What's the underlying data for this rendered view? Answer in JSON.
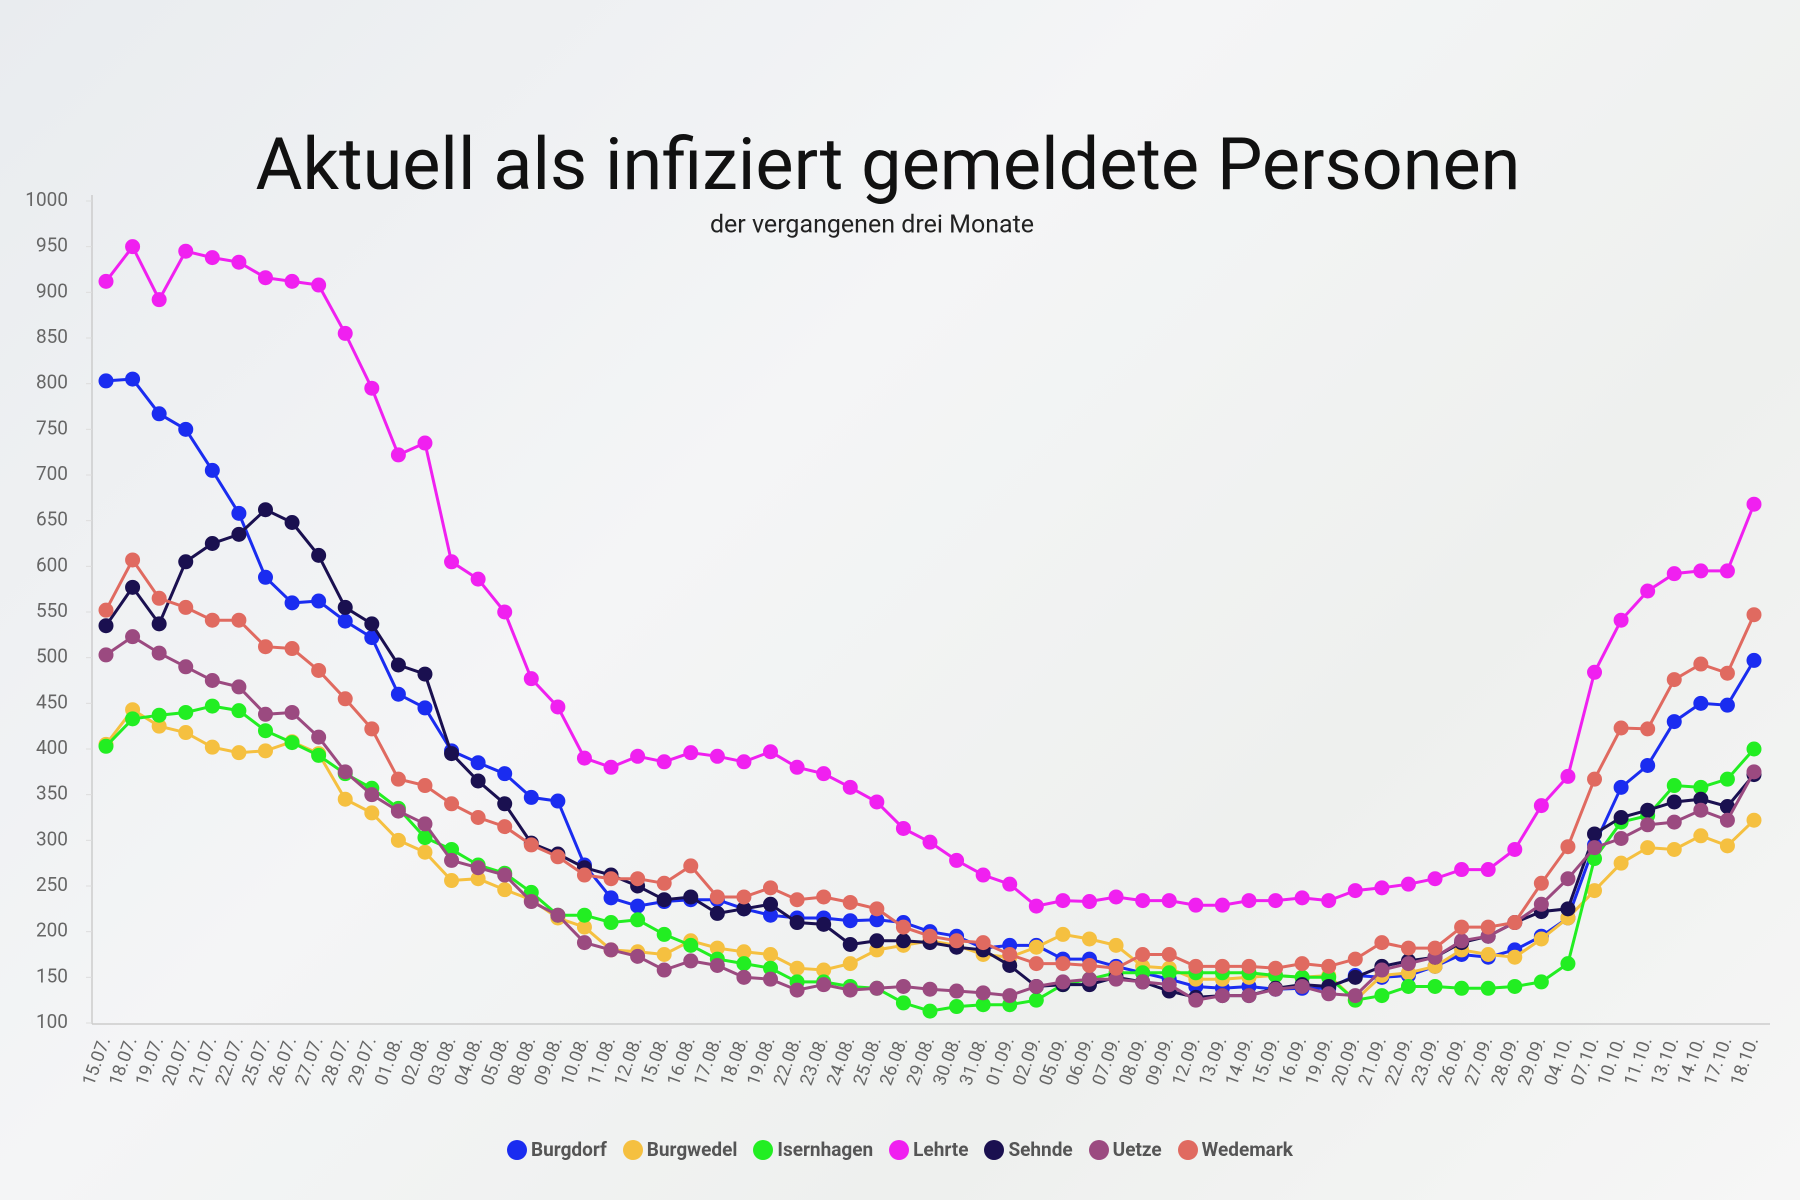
{
  "chart_data": {
    "type": "line",
    "title": "Aktuell als infiziert gemeldete Personen",
    "subtitle": "der vergangenen drei Monate",
    "categories": [
      "15.07.",
      "18.07.",
      "19.07.",
      "20.07.",
      "21.07.",
      "22.07.",
      "25.07.",
      "26.07.",
      "27.07.",
      "28.07.",
      "29.07.",
      "01.08.",
      "02.08.",
      "03.08.",
      "04.08.",
      "05.08.",
      "08.08.",
      "09.08.",
      "10.08.",
      "11.08.",
      "12.08.",
      "15.08.",
      "16.08.",
      "17.08.",
      "18.08.",
      "19.08.",
      "22.08.",
      "23.08.",
      "24.08.",
      "25.08.",
      "26.08.",
      "29.08.",
      "30.08.",
      "31.08.",
      "01.09.",
      "02.09.",
      "05.09.",
      "06.09.",
      "07.09.",
      "08.09.",
      "09.09.",
      "12.09.",
      "13.09.",
      "14.09.",
      "15.09.",
      "16.09.",
      "19.09.",
      "20.09.",
      "21.09.",
      "22.09.",
      "23.09.",
      "26.09.",
      "27.09.",
      "28.09.",
      "29.09.",
      "04.10.",
      "07.10.",
      "10.10.",
      "11.10.",
      "13.10.",
      "14.10.",
      "17.10.",
      "18.10."
    ],
    "series": [
      {
        "name": "Burgdorf",
        "color": "#1a2cf0",
        "values": [
          803,
          805,
          767,
          750,
          705,
          658,
          588,
          560,
          562,
          540,
          522,
          460,
          445,
          398,
          385,
          373,
          347,
          343,
          273,
          237,
          228,
          233,
          235,
          235,
          225,
          218,
          215,
          215,
          212,
          213,
          210,
          200,
          195,
          182,
          185,
          185,
          170,
          170,
          162,
          155,
          148,
          140,
          138,
          140,
          137,
          138,
          138,
          152,
          150,
          152,
          162,
          175,
          172,
          180,
          195,
          215,
          295,
          358,
          382,
          430,
          450,
          448,
          497
        ]
      },
      {
        "name": "Burgwedel",
        "color": "#f5c040",
        "values": [
          405,
          443,
          425,
          418,
          402,
          396,
          398,
          408,
          395,
          345,
          330,
          300,
          287,
          256,
          258,
          246,
          235,
          215,
          205,
          180,
          178,
          175,
          190,
          182,
          178,
          175,
          160,
          158,
          165,
          180,
          185,
          190,
          185,
          175,
          172,
          183,
          197,
          192,
          185,
          162,
          160,
          148,
          148,
          150,
          152,
          150,
          152,
          125,
          152,
          155,
          162,
          180,
          175,
          172,
          192,
          215,
          245,
          275,
          292,
          290,
          305,
          294,
          322
        ]
      },
      {
        "name": "Isernhagen",
        "color": "#22ee22",
        "values": [
          403,
          433,
          437,
          440,
          447,
          442,
          420,
          407,
          393,
          373,
          357,
          335,
          303,
          290,
          273,
          264,
          243,
          218,
          218,
          210,
          213,
          197,
          185,
          170,
          165,
          160,
          145,
          145,
          140,
          138,
          122,
          113,
          118,
          120,
          120,
          125,
          142,
          148,
          155,
          155,
          155,
          155,
          155,
          155,
          152,
          150,
          150,
          125,
          130,
          140,
          140,
          138,
          138,
          140,
          145,
          165,
          280,
          320,
          327,
          360,
          358,
          367,
          400
        ]
      },
      {
        "name": "Lehrte",
        "color": "#f020f0",
        "values": [
          912,
          950,
          892,
          945,
          938,
          933,
          916,
          912,
          908,
          855,
          795,
          722,
          735,
          605,
          586,
          550,
          477,
          446,
          390,
          380,
          392,
          386,
          396,
          392,
          386,
          397,
          380,
          373,
          358,
          342,
          313,
          298,
          278,
          262,
          252,
          228,
          234,
          233,
          238,
          234,
          234,
          229,
          229,
          234,
          234,
          237,
          234,
          245,
          248,
          252,
          258,
          268,
          268,
          290,
          338,
          370,
          484,
          541,
          573,
          592,
          595,
          595,
          668
        ]
      },
      {
        "name": "Sehnde",
        "color": "#1a1050",
        "values": [
          535,
          577,
          537,
          605,
          625,
          635,
          662,
          648,
          612,
          555,
          537,
          492,
          482,
          395,
          365,
          340,
          297,
          285,
          270,
          262,
          250,
          235,
          238,
          220,
          225,
          230,
          210,
          208,
          186,
          190,
          190,
          188,
          183,
          180,
          163,
          140,
          142,
          142,
          150,
          145,
          135,
          128,
          130,
          130,
          138,
          142,
          140,
          150,
          162,
          168,
          172,
          188,
          195,
          210,
          222,
          225,
          307,
          325,
          333,
          342,
          345,
          337,
          372
        ]
      },
      {
        "name": "Uetze",
        "color": "#9b4a80",
        "values": [
          503,
          523,
          505,
          490,
          475,
          468,
          438,
          440,
          413,
          375,
          350,
          332,
          318,
          278,
          270,
          262,
          233,
          218,
          188,
          180,
          173,
          158,
          168,
          163,
          150,
          148,
          136,
          142,
          136,
          138,
          140,
          137,
          135,
          133,
          130,
          140,
          145,
          148,
          148,
          145,
          142,
          125,
          130,
          130,
          137,
          140,
          132,
          130,
          158,
          165,
          172,
          190,
          195,
          210,
          230,
          258,
          292,
          302,
          317,
          320,
          333,
          322,
          375
        ]
      },
      {
        "name": "Wedemark",
        "color": "#e06a60",
        "values": [
          552,
          607,
          565,
          555,
          541,
          541,
          512,
          510,
          486,
          455,
          422,
          367,
          360,
          340,
          325,
          315,
          295,
          282,
          262,
          258,
          258,
          253,
          272,
          238,
          238,
          248,
          235,
          238,
          232,
          225,
          205,
          195,
          190,
          188,
          175,
          165,
          165,
          163,
          160,
          175,
          175,
          162,
          162,
          162,
          160,
          165,
          162,
          170,
          188,
          182,
          182,
          205,
          205,
          210,
          253,
          293,
          367,
          423,
          422,
          476,
          493,
          483,
          547
        ]
      }
    ],
    "ylim": [
      100,
      1000
    ],
    "yticks": [
      100,
      150,
      200,
      250,
      300,
      350,
      400,
      450,
      500,
      550,
      600,
      650,
      700,
      750,
      800,
      850,
      900,
      950,
      1000
    ],
    "grid": false,
    "legend": "bottom"
  }
}
